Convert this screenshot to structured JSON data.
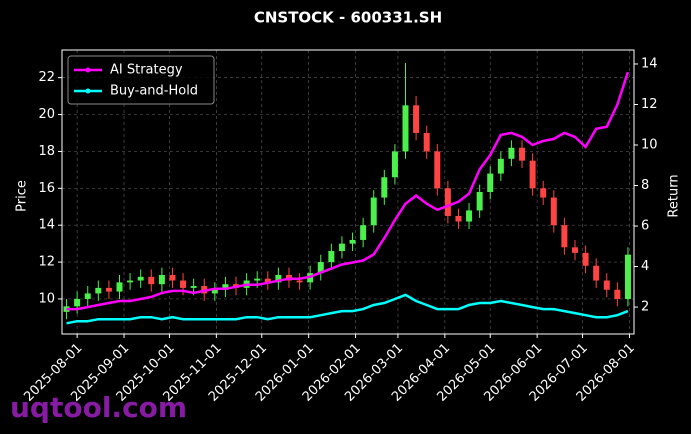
{
  "chart_data": {
    "type": "candlestick",
    "title": "CNSTOCK - 600331.SH",
    "ylabel": "Price",
    "y2label": "Return",
    "watermark": "uqtool.com",
    "x": [
      "2025-07-25",
      "2025-08-01",
      "2025-08-08",
      "2025-08-15",
      "2025-08-22",
      "2025-08-29",
      "2025-09-05",
      "2025-09-12",
      "2025-09-19",
      "2025-09-26",
      "2025-10-03",
      "2025-10-10",
      "2025-10-17",
      "2025-10-24",
      "2025-10-31",
      "2025-11-07",
      "2025-11-14",
      "2025-11-21",
      "2025-11-28",
      "2025-12-05",
      "2025-12-12",
      "2025-12-19",
      "2025-12-26",
      "2026-01-02",
      "2026-01-09",
      "2026-01-16",
      "2026-01-23",
      "2026-01-30",
      "2026-02-06",
      "2026-02-13",
      "2026-02-20",
      "2026-02-27",
      "2026-03-06",
      "2026-03-13",
      "2026-03-20",
      "2026-03-27",
      "2026-04-03",
      "2026-04-10",
      "2026-04-17",
      "2026-04-24",
      "2026-05-01",
      "2026-05-08",
      "2026-05-15",
      "2026-05-22",
      "2026-05-29",
      "2026-06-05",
      "2026-06-12",
      "2026-06-19",
      "2026-06-26",
      "2026-07-03",
      "2026-07-10",
      "2026-07-17",
      "2026-07-24",
      "2026-07-31"
    ],
    "open": [
      9.3,
      9.6,
      10.0,
      10.3,
      10.6,
      10.4,
      10.9,
      11.0,
      11.2,
      10.8,
      11.3,
      11.0,
      10.6,
      10.7,
      10.3,
      10.5,
      10.8,
      10.6,
      11.0,
      11.1,
      10.9,
      11.3,
      11.0,
      10.9,
      11.4,
      12.0,
      12.6,
      13.0,
      13.2,
      14.0,
      15.5,
      16.6,
      18.0,
      20.5,
      19.0,
      18.0,
      16.0,
      14.5,
      14.2,
      14.8,
      15.8,
      16.8,
      17.6,
      18.2,
      17.5,
      16.0,
      15.5,
      14.0,
      12.8,
      12.5,
      11.8,
      11.0,
      10.5,
      10.0
    ],
    "high": [
      10.0,
      10.4,
      10.7,
      11.0,
      11.0,
      11.3,
      11.4,
      11.6,
      11.6,
      11.7,
      11.7,
      11.4,
      11.1,
      11.1,
      10.9,
      11.2,
      11.2,
      11.4,
      11.5,
      11.5,
      11.7,
      11.7,
      11.4,
      11.8,
      12.4,
      13.0,
      13.4,
      13.6,
      14.4,
      15.9,
      17.0,
      18.4,
      22.8,
      21.0,
      19.4,
      18.4,
      16.4,
      14.9,
      15.2,
      16.2,
      17.2,
      18.0,
      18.6,
      18.6,
      17.9,
      16.4,
      15.9,
      14.4,
      13.2,
      12.9,
      12.2,
      11.4,
      10.9,
      12.8
    ],
    "low": [
      8.9,
      9.2,
      9.6,
      9.9,
      10.0,
      10.0,
      10.5,
      10.6,
      10.4,
      10.4,
      10.6,
      10.2,
      10.2,
      9.9,
      9.9,
      10.1,
      10.2,
      10.2,
      10.6,
      10.5,
      10.5,
      10.6,
      10.5,
      10.5,
      11.0,
      11.6,
      12.2,
      12.6,
      12.8,
      13.6,
      15.1,
      16.2,
      17.6,
      18.6,
      17.6,
      15.6,
      14.1,
      13.8,
      13.8,
      14.4,
      15.4,
      16.4,
      17.2,
      17.1,
      15.6,
      15.1,
      13.6,
      12.4,
      12.1,
      11.4,
      10.6,
      10.1,
      9.6,
      9.6
    ],
    "close": [
      9.6,
      10.0,
      10.3,
      10.6,
      10.4,
      10.9,
      11.0,
      11.2,
      10.8,
      11.3,
      11.0,
      10.6,
      10.7,
      10.3,
      10.5,
      10.8,
      10.6,
      11.0,
      11.1,
      10.9,
      11.3,
      11.0,
      10.9,
      11.4,
      12.0,
      12.6,
      13.0,
      13.2,
      14.0,
      15.5,
      16.6,
      18.0,
      20.5,
      19.0,
      18.0,
      16.0,
      14.5,
      14.2,
      14.8,
      15.8,
      16.8,
      17.6,
      18.2,
      17.5,
      16.0,
      15.5,
      14.0,
      12.8,
      12.5,
      11.8,
      11.0,
      10.5,
      10.0,
      12.4
    ],
    "up_color": "#4cf04c",
    "down_color": "#ff4444",
    "series": [
      {
        "name": "AI Strategy",
        "color": "#ff00ff",
        "axis": "y2",
        "values": [
          1.9,
          1.9,
          2.0,
          2.1,
          2.2,
          2.3,
          2.3,
          2.4,
          2.5,
          2.7,
          2.8,
          2.8,
          2.7,
          2.8,
          2.9,
          2.9,
          3.0,
          3.1,
          3.1,
          3.2,
          3.3,
          3.4,
          3.4,
          3.5,
          3.7,
          3.9,
          4.1,
          4.2,
          4.3,
          4.6,
          5.4,
          6.3,
          7.1,
          7.5,
          7.1,
          6.8,
          7.0,
          7.2,
          7.6,
          8.8,
          9.5,
          10.5,
          10.6,
          10.4,
          10.0,
          10.2,
          10.3,
          10.6,
          10.4,
          9.9,
          10.8,
          10.9,
          12.0,
          13.6
        ]
      },
      {
        "name": "Buy-and-Hold",
        "color": "#00ffff",
        "axis": "y2",
        "values": [
          1.2,
          1.3,
          1.3,
          1.4,
          1.4,
          1.4,
          1.4,
          1.5,
          1.5,
          1.4,
          1.5,
          1.4,
          1.4,
          1.4,
          1.4,
          1.4,
          1.4,
          1.5,
          1.5,
          1.4,
          1.5,
          1.5,
          1.5,
          1.5,
          1.6,
          1.7,
          1.8,
          1.8,
          1.9,
          2.1,
          2.2,
          2.4,
          2.6,
          2.3,
          2.1,
          1.9,
          1.9,
          1.9,
          2.1,
          2.2,
          2.2,
          2.3,
          2.2,
          2.1,
          2.0,
          1.9,
          1.9,
          1.8,
          1.7,
          1.6,
          1.5,
          1.5,
          1.6,
          1.8
        ]
      }
    ],
    "xlim": [
      "2025-07-22",
      "2026-08-04"
    ],
    "xticks": [
      "2025-08-01",
      "2025-09-01",
      "2025-10-01",
      "2025-11-01",
      "2025-12-01",
      "2026-01-01",
      "2026-02-01",
      "2026-03-01",
      "2026-04-01",
      "2026-05-01",
      "2026-06-01",
      "2026-07-01",
      "2026-08-01"
    ],
    "ylim": [
      8.1,
      23.5
    ],
    "yticks": [
      10,
      12,
      14,
      16,
      18,
      20,
      22
    ],
    "y2lim": [
      0.67,
      14.69
    ],
    "y2ticks": [
      2,
      4,
      6,
      8,
      10,
      12,
      14
    ],
    "grid": true,
    "legend": "upper-left"
  }
}
